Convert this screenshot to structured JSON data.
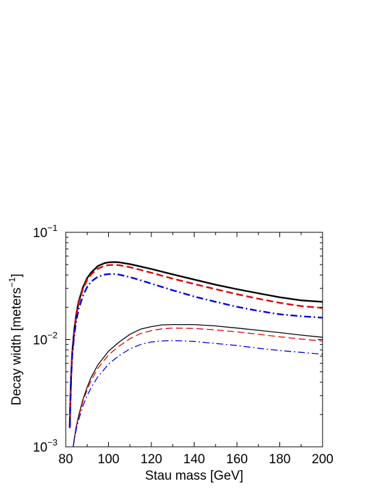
{
  "chart_data": {
    "type": "line",
    "title": "",
    "xlabel": "Stau mass  [GeV]",
    "ylabel_main": "Decay width  [meters",
    "ylabel_sup": "−1",
    "ylabel_end": "]",
    "xlim": [
      80,
      200
    ],
    "ylim": [
      0.001,
      0.1
    ],
    "yscale": "log",
    "grid": false,
    "legend": "none",
    "xticks": [
      80,
      100,
      120,
      140,
      160,
      180,
      200
    ],
    "xtick_labels": [
      "80",
      "100",
      "120",
      "140",
      "160",
      "180",
      "200"
    ],
    "yticks": [
      {
        "value": 0.001,
        "base": "10",
        "exp": "−3"
      },
      {
        "value": 0.01,
        "base": "10",
        "exp": "−2"
      },
      {
        "value": 0.1,
        "base": "10",
        "exp": "−1"
      }
    ],
    "series": [
      {
        "style": "solid",
        "color": "#000000",
        "width": 2.4,
        "x": [
          81.9,
          82.1,
          82.5,
          83,
          84,
          85,
          86,
          88,
          90,
          92,
          95,
          98,
          100,
          103,
          105,
          110,
          115,
          120,
          130,
          140,
          150,
          160,
          170,
          180,
          190,
          200
        ],
        "y": [
          0.0015,
          0.0025,
          0.0045,
          0.0075,
          0.0125,
          0.0175,
          0.0225,
          0.0305,
          0.0375,
          0.0425,
          0.0485,
          0.0515,
          0.0525,
          0.0528,
          0.0525,
          0.0505,
          0.048,
          0.0455,
          0.0405,
          0.0363,
          0.0325,
          0.0295,
          0.027,
          0.0248,
          0.0232,
          0.0225
        ]
      },
      {
        "style": "dashed",
        "color": "#e00000",
        "width": 2.4,
        "x": [
          81.9,
          82.1,
          82.5,
          83,
          84,
          85,
          86,
          88,
          90,
          92,
          95,
          98,
          100,
          103,
          105,
          110,
          115,
          120,
          130,
          140,
          150,
          160,
          170,
          180,
          190,
          200
        ],
        "y": [
          0.0015,
          0.0025,
          0.0045,
          0.0074,
          0.0122,
          0.017,
          0.0218,
          0.0295,
          0.036,
          0.0408,
          0.0458,
          0.0487,
          0.0495,
          0.0497,
          0.0494,
          0.0473,
          0.0446,
          0.042,
          0.037,
          0.033,
          0.0295,
          0.0265,
          0.024,
          0.022,
          0.0205,
          0.0197
        ]
      },
      {
        "style": "dashdot",
        "color": "#0000e0",
        "width": 2.4,
        "x": [
          81.9,
          82.1,
          82.5,
          83,
          84,
          85,
          86,
          88,
          90,
          92,
          95,
          98,
          100,
          103,
          105,
          110,
          115,
          120,
          130,
          140,
          150,
          160,
          170,
          180,
          190,
          200
        ],
        "y": [
          0.0015,
          0.0024,
          0.0043,
          0.007,
          0.0112,
          0.0152,
          0.0192,
          0.0255,
          0.031,
          0.035,
          0.0385,
          0.0403,
          0.0408,
          0.0408,
          0.0403,
          0.0382,
          0.0357,
          0.0332,
          0.0288,
          0.0252,
          0.0225,
          0.0202,
          0.0185,
          0.0172,
          0.0165,
          0.016
        ]
      },
      {
        "style": "solid",
        "color": "#000000",
        "width": 1.3,
        "x": [
          83.5,
          84,
          85,
          86,
          88,
          90,
          92,
          95,
          100,
          105,
          110,
          115,
          120,
          125,
          130,
          140,
          150,
          160,
          170,
          180,
          190,
          200
        ],
        "y": [
          0.001,
          0.0012,
          0.00158,
          0.00195,
          0.00275,
          0.0036,
          0.0045,
          0.0058,
          0.0078,
          0.0095,
          0.0112,
          0.0125,
          0.0132,
          0.0137,
          0.0138,
          0.0138,
          0.0134,
          0.0128,
          0.0122,
          0.0116,
          0.011,
          0.0105
        ]
      },
      {
        "style": "dashed",
        "color": "#e00000",
        "width": 1.3,
        "x": [
          83.5,
          84,
          85,
          86,
          88,
          90,
          92,
          95,
          100,
          105,
          110,
          115,
          120,
          125,
          130,
          140,
          150,
          160,
          170,
          180,
          190,
          200
        ],
        "y": [
          0.001,
          0.00118,
          0.00155,
          0.0019,
          0.00265,
          0.0034,
          0.0042,
          0.0054,
          0.0072,
          0.0087,
          0.0102,
          0.0114,
          0.0121,
          0.0126,
          0.0128,
          0.0127,
          0.0123,
          0.0118,
          0.0112,
          0.0106,
          0.0101,
          0.0097
        ]
      },
      {
        "style": "dashdot",
        "color": "#0000e0",
        "width": 1.3,
        "x": [
          83.5,
          84,
          85,
          86,
          88,
          90,
          92,
          95,
          100,
          105,
          110,
          115,
          120,
          125,
          130,
          140,
          150,
          160,
          170,
          180,
          190,
          200
        ],
        "y": [
          0.001,
          0.00115,
          0.00148,
          0.00178,
          0.0024,
          0.003,
          0.0036,
          0.0045,
          0.0059,
          0.0071,
          0.0082,
          0.009,
          0.0095,
          0.0097,
          0.0098,
          0.0096,
          0.0092,
          0.0088,
          0.0083,
          0.0079,
          0.0076,
          0.0073
        ]
      }
    ]
  }
}
